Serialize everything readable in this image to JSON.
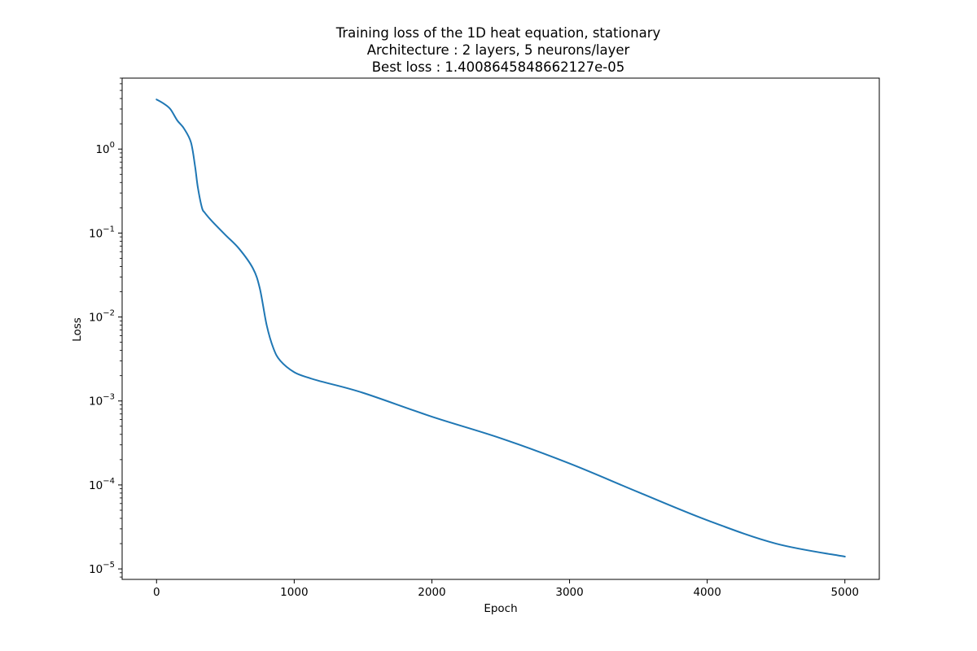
{
  "chart_data": {
    "type": "line",
    "title_lines": [
      "Training loss of the 1D heat equation, stationary",
      "Architecture : 2 layers, 5 neurons/layer",
      "Best loss : 1.4008645848662127e-05"
    ],
    "xlabel": "Epoch",
    "ylabel": "Loss",
    "xlim": [
      -250,
      5250
    ],
    "ylim": [
      7.5e-06,
      7.0
    ],
    "yscale": "log",
    "grid": false,
    "x_ticks": [
      0,
      1000,
      2000,
      3000,
      4000,
      5000
    ],
    "x_tick_labels": [
      "0",
      "1000",
      "2000",
      "3000",
      "4000",
      "5000"
    ],
    "y_ticks": [
      1.0,
      0.1,
      0.01,
      0.001,
      0.0001,
      1e-05
    ],
    "y_tick_labels": [
      {
        "base": "10",
        "exp": "0"
      },
      {
        "base": "10",
        "exp": "−1"
      },
      {
        "base": "10",
        "exp": "−2"
      },
      {
        "base": "10",
        "exp": "−3"
      },
      {
        "base": "10",
        "exp": "−4"
      },
      {
        "base": "10",
        "exp": "−5"
      }
    ],
    "series": [
      {
        "color": "#1f77b4",
        "x": [
          0,
          50,
          100,
          150,
          200,
          250,
          280,
          300,
          330,
          350,
          400,
          500,
          600,
          700,
          750,
          800,
          850,
          900,
          1000,
          1100,
          1200,
          1500,
          2000,
          2500,
          3000,
          3500,
          4000,
          4500,
          5000
        ],
        "y": [
          3.9,
          3.5,
          3.0,
          2.2,
          1.75,
          1.2,
          0.62,
          0.35,
          0.2,
          0.175,
          0.14,
          0.095,
          0.065,
          0.038,
          0.022,
          0.008,
          0.0042,
          0.003,
          0.0022,
          0.0019,
          0.0017,
          0.00125,
          0.00065,
          0.00036,
          0.00018,
          8.2e-05,
          3.8e-05,
          2e-05,
          1.4e-05
        ]
      }
    ]
  }
}
